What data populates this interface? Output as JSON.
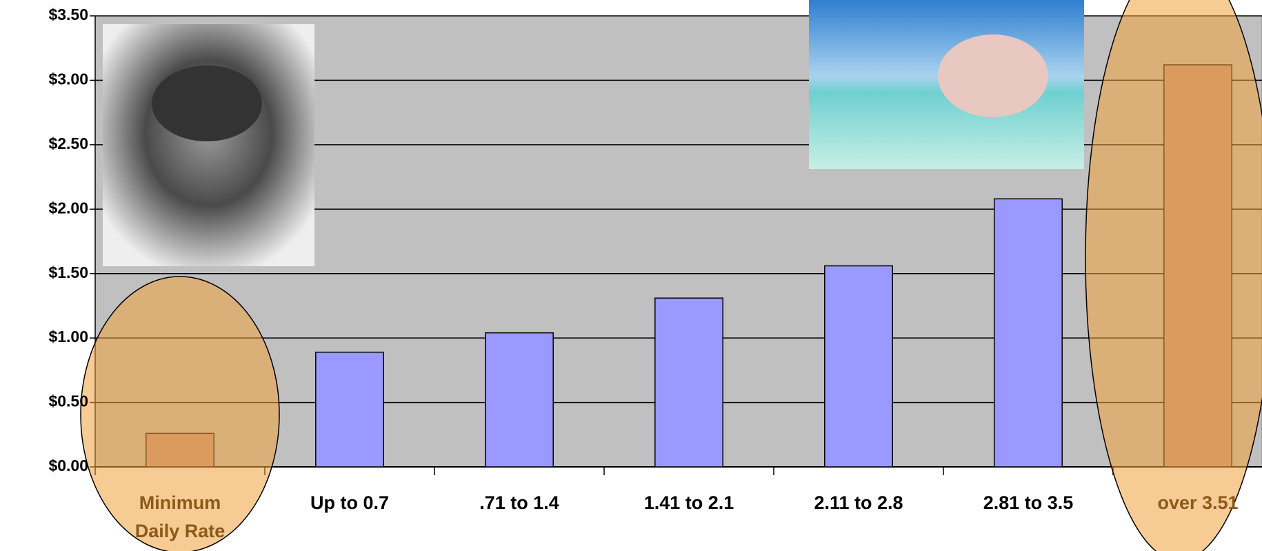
{
  "chart_data": {
    "type": "bar",
    "categories": [
      "Minimum Daily Rate",
      "Up to 0.7",
      ".71 to 1.4",
      "1.41 to 2.1",
      "2.11 to 2.8",
      "2.81 to 3.5",
      "over 3.51"
    ],
    "values": [
      0.26,
      0.89,
      1.04,
      1.31,
      1.56,
      2.08,
      3.12
    ],
    "colors": [
      "#c49488",
      "#9999ff",
      "#9999ff",
      "#9999ff",
      "#9999ff",
      "#9999ff",
      "#c49488"
    ],
    "ylim": [
      0,
      3.5
    ],
    "yticks": [
      {
        "value": 0,
        "label": "$0.00"
      },
      {
        "value": 0.5,
        "label": "$0.50"
      },
      {
        "value": 1,
        "label": "$1.00"
      },
      {
        "value": 1.5,
        "label": "$1.50"
      },
      {
        "value": 2,
        "label": "$2.00"
      },
      {
        "value": 2.5,
        "label": "$2.50"
      },
      {
        "value": 3,
        "label": "$3.00"
      },
      {
        "value": 3.5,
        "label": "$3.50"
      }
    ],
    "grid": true
  }
}
